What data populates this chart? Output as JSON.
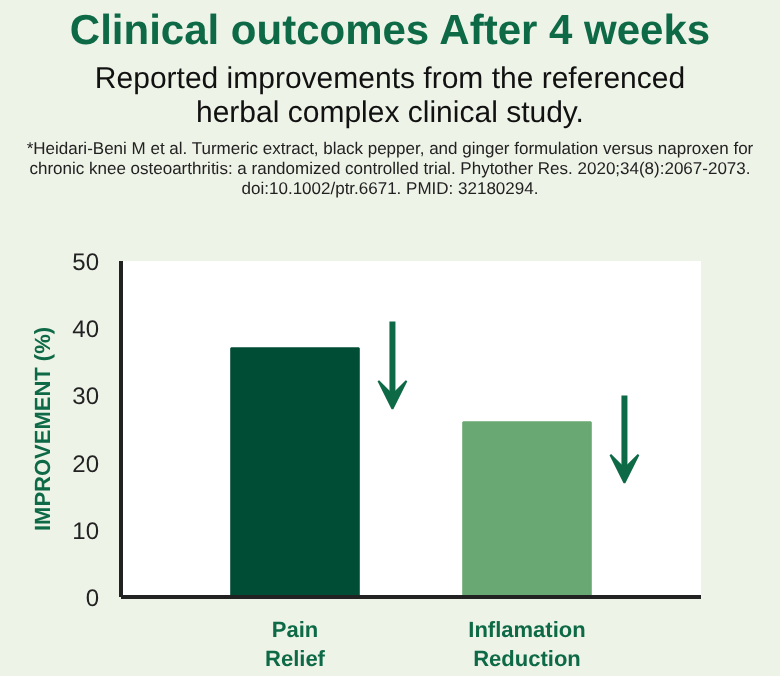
{
  "chart_data": {
    "type": "bar",
    "title": "Clinical outcomes After 4 weeks",
    "subtitle": "Reported improvements from the referenced herbal complex clinical study.",
    "annotations": [
      "*Heidari-Beni M et al. Turmeric extract, black pepper, and ginger formulation versus naproxen for chronic knee osteoarthritis: a randomized controlled trial. Phytother Res. 2020;34(8):2067-2073. doi:10.1002/ptr.6671. PMID: 32180294."
    ],
    "ylabel": "IMPROVEMENT (%)",
    "categories": [
      "Pain Relief",
      "Inflamation Reduction"
    ],
    "values": [
      37,
      26
    ],
    "colors": [
      "#004d36",
      "#6aa873"
    ],
    "ylim": [
      0,
      50
    ],
    "yticks": [
      0,
      10,
      20,
      30,
      40,
      50
    ],
    "grid": false
  }
}
